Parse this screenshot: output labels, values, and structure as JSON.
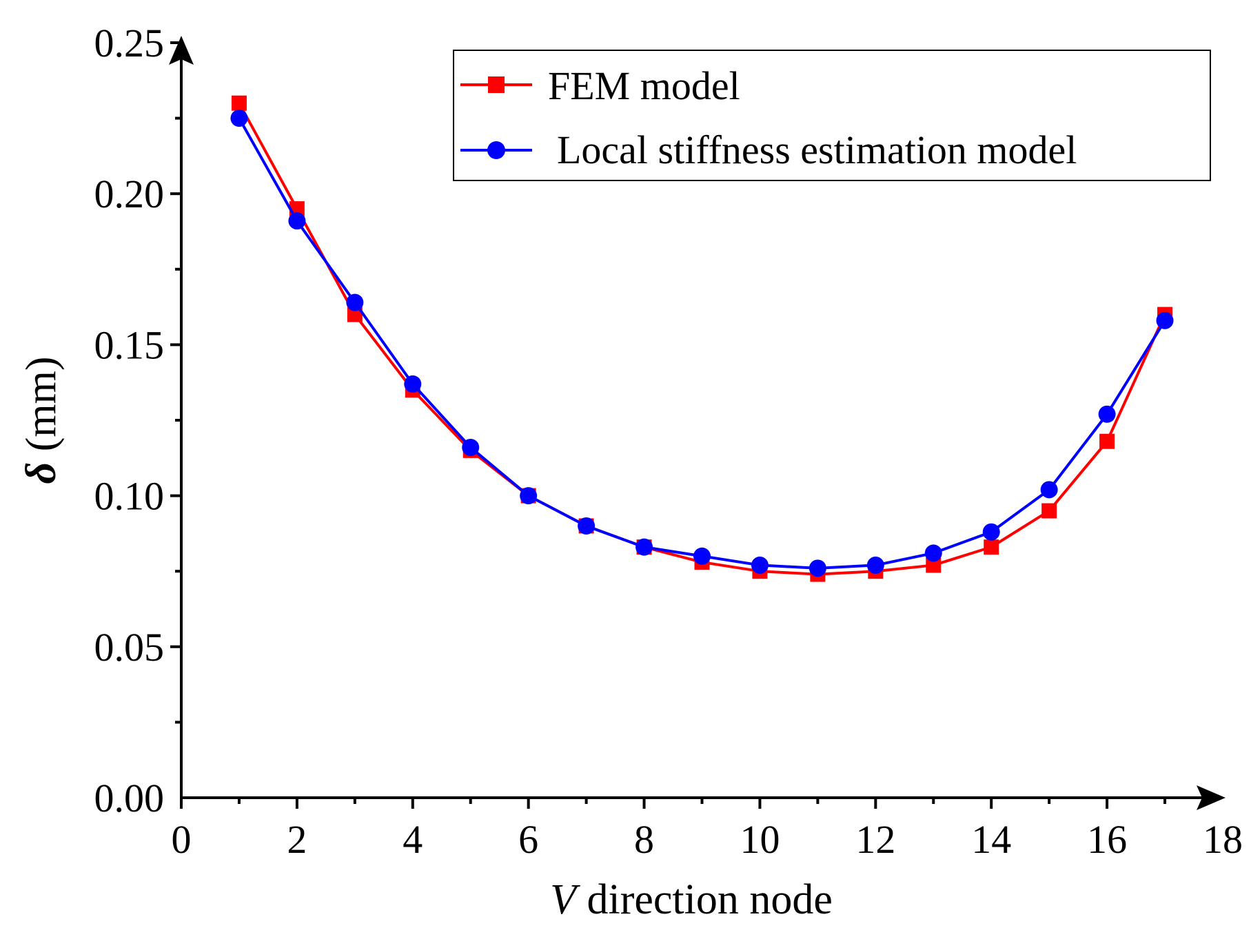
{
  "chart_data": {
    "type": "line",
    "title": "",
    "xlabel": {
      "italic": "V",
      "rest": " direction node"
    },
    "ylabel": {
      "italic": "δ",
      "rest": " (mm)"
    },
    "xlim": [
      0,
      18
    ],
    "ylim": [
      0,
      0.25
    ],
    "xticks": [
      "0",
      "2",
      "4",
      "6",
      "8",
      "10",
      "12",
      "14",
      "16",
      "18"
    ],
    "yticks": [
      "0.00",
      "0.05",
      "0.10",
      "0.15",
      "0.20",
      "0.25"
    ],
    "grid": false,
    "legend_position": "top-right",
    "x": [
      1,
      2,
      3,
      4,
      5,
      6,
      7,
      8,
      9,
      10,
      11,
      12,
      13,
      14,
      15,
      16,
      17
    ],
    "series": [
      {
        "name": "FEM model",
        "color": "#ff0000",
        "marker": "square",
        "values": [
          0.23,
          0.195,
          0.16,
          0.135,
          0.115,
          0.1,
          0.09,
          0.083,
          0.078,
          0.075,
          0.074,
          0.075,
          0.077,
          0.083,
          0.095,
          0.118,
          0.16
        ]
      },
      {
        "name": "Local stiffness estimation model",
        "color": "#0000ff",
        "marker": "circle",
        "values": [
          0.225,
          0.191,
          0.164,
          0.137,
          0.116,
          0.1,
          0.09,
          0.083,
          0.08,
          0.077,
          0.076,
          0.077,
          0.081,
          0.088,
          0.102,
          0.127,
          0.158
        ]
      }
    ]
  }
}
